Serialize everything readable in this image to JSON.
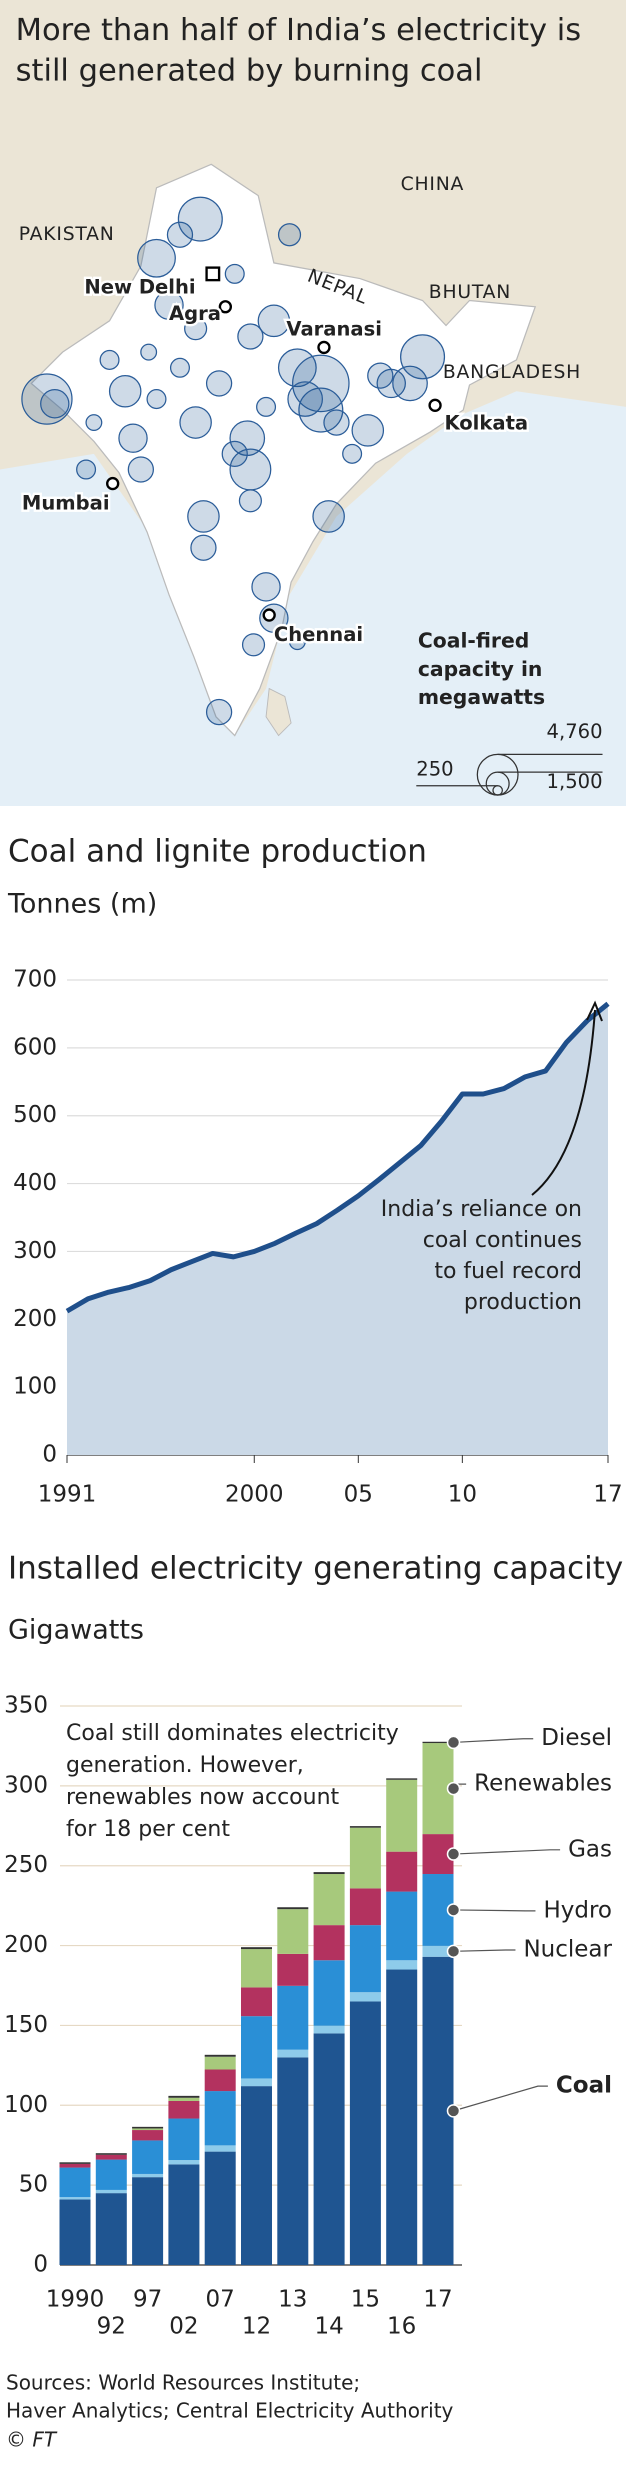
{
  "title": [
    "More than half of India’s electricity is",
    "still generated by burning coal"
  ],
  "map": {
    "countries": [
      "PAKISTAN",
      "CHINA",
      "NEPAL",
      "BHUTAN",
      "BANGLADESH"
    ],
    "cities": [
      "New Delhi",
      "Agra",
      "Varanasi",
      "Kolkata",
      "Mumbai",
      "Chennai"
    ],
    "legend": {
      "title": [
        "Coal-fired",
        "capacity in",
        "megawatts"
      ],
      "sizes": [
        {
          "value": 4760,
          "label": "4,760"
        },
        {
          "value": 1500,
          "label": "1,500"
        },
        250
      ]
    }
  },
  "chart_data": [
    {
      "type": "line",
      "title": "Coal and lignite production",
      "subtitle": "Tonnes (m)",
      "x": [
        1991,
        1992,
        1993,
        1994,
        1995,
        1996,
        1997,
        1998,
        1999,
        2000,
        2001,
        2002,
        2003,
        2004,
        2005,
        2006,
        2007,
        2008,
        2009,
        2010,
        2011,
        2012,
        2013,
        2014,
        2015,
        2016,
        2017
      ],
      "values": [
        212,
        230,
        240,
        247,
        257,
        273,
        285,
        297,
        292,
        300,
        312,
        327,
        341,
        361,
        382,
        406,
        431,
        456,
        492,
        532,
        532,
        540,
        557,
        566,
        608,
        640,
        665
      ],
      "color": "#1f4f8b",
      "area_color": "#cbd9e7",
      "xlim": [
        1991,
        2017
      ],
      "xticks": [
        1991,
        2000,
        {
          "value": 2005,
          "label": "05"
        },
        {
          "value": 2010,
          "label": "10"
        },
        {
          "value": 2017,
          "label": "17"
        }
      ],
      "ylim": [
        0,
        700
      ],
      "yticks": [
        0,
        100,
        200,
        300,
        400,
        500,
        600,
        700
      ],
      "grid": true,
      "annotation": [
        "India’s reliance on",
        "coal continues",
        "to fuel record",
        "production"
      ]
    },
    {
      "type": "bar",
      "stacked": true,
      "title": "Installed electricity generating capacity",
      "subtitle": "Gigawatts",
      "categories": [
        "1990",
        "92",
        "97",
        "02",
        "07",
        "12",
        "13",
        "14",
        "15",
        "16",
        "17"
      ],
      "series": [
        {
          "name": "Coal",
          "color": "#1f5591",
          "values": [
            41,
            45,
            55,
            63,
            71,
            112,
            130,
            145,
            165,
            185,
            193
          ]
        },
        {
          "name": "Nuclear",
          "color": "#8ecbea",
          "values": [
            1.5,
            2,
            2,
            2.7,
            3.9,
            4.8,
            4.8,
            4.8,
            5.8,
            5.8,
            6.8
          ]
        },
        {
          "name": "Hydro",
          "color": "#2a8fd6",
          "values": [
            18.5,
            19,
            21,
            26,
            34,
            39,
            40,
            41,
            42,
            43,
            45
          ]
        },
        {
          "name": "Gas",
          "color": "#b3325f",
          "values": [
            2.3,
            3,
            6.5,
            11,
            13.5,
            18,
            20,
            22,
            23,
            25,
            25
          ]
        },
        {
          "name": "Renewables",
          "color": "#a7c97c",
          "values": [
            0,
            0,
            1,
            2,
            8,
            24,
            28,
            32,
            38,
            45,
            57
          ]
        },
        {
          "name": "Diesel",
          "color": "#333333",
          "values": [
            1,
            1,
            1,
            1.2,
            1.2,
            1.2,
            1.2,
            1.2,
            1,
            0.9,
            0.8
          ]
        }
      ],
      "ylim": [
        0,
        350
      ],
      "yticks": [
        0,
        50,
        100,
        150,
        200,
        250,
        300,
        350
      ],
      "grid": true,
      "legend": "right",
      "annotation": [
        "Coal still dominates electricity",
        "generation. However,",
        "renewables now account",
        "for 18 per cent"
      ]
    }
  ],
  "footer": {
    "sources": [
      "Sources: World Resources Institute;",
      "Haver Analytics; Central Electricity Authority"
    ],
    "credit": "© FT"
  }
}
